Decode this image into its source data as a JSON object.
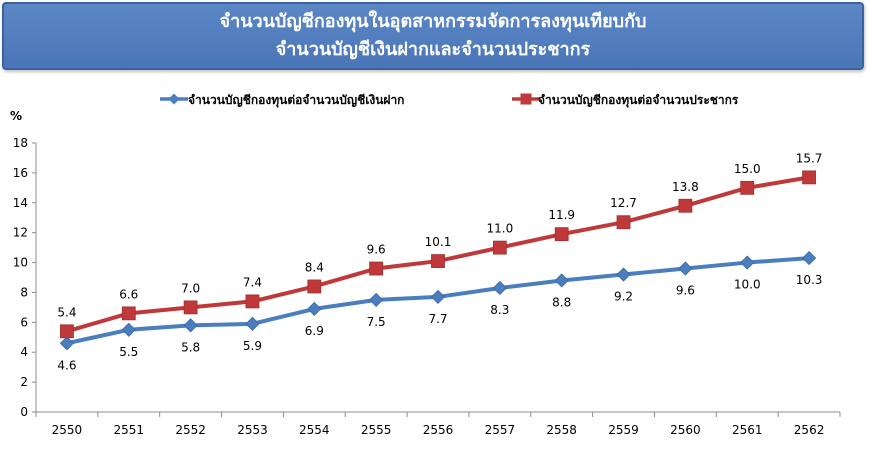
{
  "chart_data": {
    "type": "line",
    "title_line1": "จำนวนบัญชีกองทุนในอุตสาหกรรมจัดการลงทุนเทียบกับ",
    "title_line2": "จำนวนบัญชีเงินฝากและจำนวนประชากร",
    "ylabel": "%",
    "xlabel": "",
    "ylim": [
      0,
      18
    ],
    "yticks": [
      0,
      2,
      4,
      6,
      8,
      10,
      12,
      14,
      16,
      18
    ],
    "ytick_labels": [
      "0",
      "2",
      "4",
      "6",
      "8",
      "10",
      "12",
      "14",
      "16",
      "18"
    ],
    "categories": [
      "2550",
      "2551",
      "2552",
      "2553",
      "2554",
      "2555",
      "2556",
      "2557",
      "2558",
      "2559",
      "2560",
      "2561",
      "2562"
    ],
    "grid": false,
    "legend_position": "top",
    "series": [
      {
        "name": "จำนวนบัญชีกองทุนต่อจำนวนบัญชีเงินฝาก",
        "color": "#4a7ebf",
        "marker": "diamond",
        "label_position": "below",
        "values": [
          4.6,
          5.5,
          5.8,
          5.9,
          6.9,
          7.5,
          7.7,
          8.3,
          8.8,
          9.2,
          9.6,
          10.0,
          10.3
        ],
        "labels": [
          "4.6",
          "5.5",
          "5.8",
          "5.9",
          "6.9",
          "7.5",
          "7.7",
          "8.3",
          "8.8",
          "9.2",
          "9.6",
          "10.0",
          "10.3"
        ]
      },
      {
        "name": "จำนวนบัญชีกองทุนต่อจำนวนประชากร",
        "color": "#c0393a",
        "marker": "square",
        "label_position": "above",
        "values": [
          5.4,
          6.6,
          7.0,
          7.4,
          8.4,
          9.6,
          10.1,
          11.0,
          11.9,
          12.7,
          13.8,
          15.0,
          15.7
        ],
        "labels": [
          "5.4",
          "6.6",
          "7.0",
          "7.4",
          "8.4",
          "9.6",
          "10.1",
          "11.0",
          "11.9",
          "12.7",
          "13.8",
          "15.0",
          "15.7"
        ]
      }
    ]
  }
}
